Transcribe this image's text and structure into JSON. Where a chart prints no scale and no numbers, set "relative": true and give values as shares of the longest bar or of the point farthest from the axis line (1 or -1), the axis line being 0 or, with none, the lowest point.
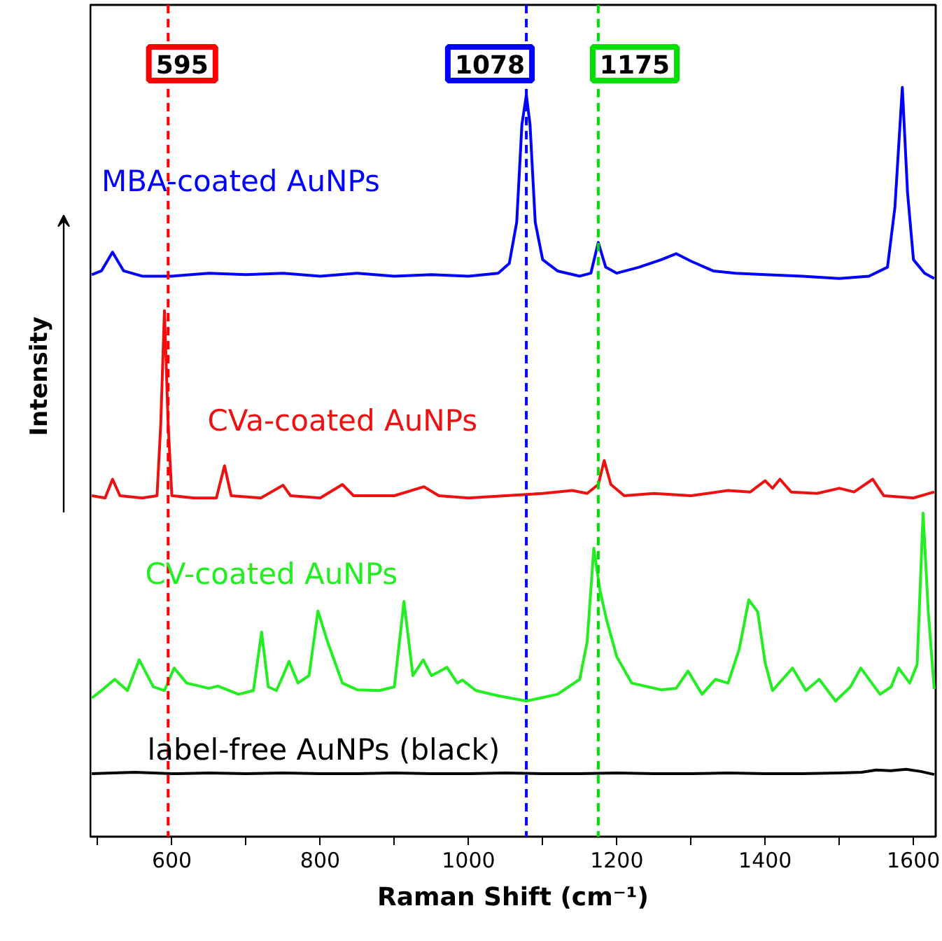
{
  "chart_data": {
    "type": "line",
    "relative": true,
    "xlabel": "Raman Shift (cm⁻¹)",
    "ylabel": "Intensity",
    "xlim": [
      490,
      1630
    ],
    "xticks": [
      {
        "value": 500,
        "label": null
      },
      600,
      {
        "value": 700,
        "label": null
      },
      800,
      {
        "value": 900,
        "label": null
      },
      1000,
      {
        "value": 1100,
        "label": null
      },
      1200,
      {
        "value": 1300,
        "label": null
      },
      1400,
      {
        "value": 1500,
        "label": null
      },
      1600
    ],
    "grid": false,
    "marker": "none",
    "line_style": "solid",
    "ref_lines": [
      {
        "axis": "x",
        "value": 595,
        "label": "595",
        "color": "#ff0000",
        "line_style": "dashed"
      },
      {
        "axis": "x",
        "value": 1078,
        "label": "1078",
        "color": "#0000ff",
        "line_style": "dashed"
      },
      {
        "axis": "x",
        "value": 1175,
        "label": "1175",
        "color": "#00e000",
        "line_style": "dashed"
      }
    ],
    "series": [
      {
        "name": "MBA-coated AuNPs",
        "color": "#0000ff",
        "x": [
          492,
          505,
          520,
          535,
          560,
          600,
          650,
          700,
          750,
          800,
          850,
          900,
          950,
          1000,
          1040,
          1055,
          1065,
          1072,
          1078,
          1083,
          1090,
          1100,
          1120,
          1150,
          1165,
          1175,
          1185,
          1200,
          1230,
          1260,
          1280,
          1300,
          1330,
          1360,
          1400,
          1450,
          1500,
          1540,
          1565,
          1575,
          1585,
          1592,
          1600,
          1615,
          1628
        ],
        "values": [
          0.75,
          0.755,
          0.78,
          0.755,
          0.748,
          0.748,
          0.752,
          0.75,
          0.752,
          0.748,
          0.752,
          0.748,
          0.75,
          0.748,
          0.752,
          0.765,
          0.82,
          0.95,
          0.99,
          0.95,
          0.82,
          0.77,
          0.755,
          0.748,
          0.752,
          0.793,
          0.76,
          0.752,
          0.76,
          0.77,
          0.778,
          0.768,
          0.755,
          0.752,
          0.75,
          0.748,
          0.745,
          0.748,
          0.76,
          0.84,
          1.0,
          0.86,
          0.77,
          0.752,
          0.745
        ]
      },
      {
        "name": "CVa-coated AuNPs",
        "color": "#ee1111",
        "x": [
          492,
          510,
          520,
          530,
          560,
          580,
          585,
          590,
          595,
          600,
          630,
          660,
          671,
          680,
          720,
          750,
          760,
          800,
          830,
          845,
          900,
          940,
          960,
          1000,
          1050,
          1100,
          1140,
          1160,
          1175,
          1183,
          1192,
          1210,
          1250,
          1300,
          1350,
          1380,
          1400,
          1410,
          1420,
          1435,
          1470,
          1500,
          1520,
          1545,
          1560,
          1600,
          1628
        ],
        "values": [
          0.455,
          0.452,
          0.477,
          0.455,
          0.452,
          0.455,
          0.55,
          0.702,
          0.55,
          0.455,
          0.452,
          0.452,
          0.495,
          0.455,
          0.452,
          0.469,
          0.455,
          0.452,
          0.47,
          0.455,
          0.455,
          0.467,
          0.455,
          0.452,
          0.455,
          0.458,
          0.462,
          0.458,
          0.47,
          0.502,
          0.47,
          0.455,
          0.458,
          0.455,
          0.462,
          0.46,
          0.475,
          0.465,
          0.477,
          0.46,
          0.458,
          0.465,
          0.46,
          0.477,
          0.455,
          0.452,
          0.46
        ]
      },
      {
        "name": "CV-coated AuNPs",
        "color": "#22ee22",
        "x": [
          492,
          505,
          523,
          540,
          556,
          575,
          590,
          603,
          620,
          650,
          662,
          690,
          710,
          721,
          730,
          741,
          750,
          758,
          770,
          785,
          797,
          810,
          830,
          850,
          880,
          900,
          913,
          925,
          939,
          950,
          960,
          971,
          985,
          992,
          1010,
          1040,
          1078,
          1120,
          1150,
          1160,
          1169,
          1177,
          1186,
          1200,
          1220,
          1260,
          1280,
          1296,
          1315,
          1333,
          1350,
          1365,
          1378,
          1390,
          1400,
          1410,
          1437,
          1455,
          1473,
          1495,
          1515,
          1529,
          1555,
          1570,
          1580,
          1595,
          1605,
          1613,
          1620,
          1628
        ],
        "values": [
          0.185,
          0.195,
          0.21,
          0.195,
          0.236,
          0.2,
          0.195,
          0.225,
          0.205,
          0.198,
          0.201,
          0.19,
          0.195,
          0.273,
          0.2,
          0.195,
          0.215,
          0.234,
          0.205,
          0.215,
          0.301,
          0.26,
          0.205,
          0.196,
          0.195,
          0.2,
          0.314,
          0.215,
          0.236,
          0.215,
          0.22,
          0.226,
          0.205,
          0.209,
          0.195,
          0.188,
          0.181,
          0.19,
          0.21,
          0.26,
          0.385,
          0.33,
          0.29,
          0.24,
          0.205,
          0.196,
          0.198,
          0.221,
          0.19,
          0.21,
          0.205,
          0.25,
          0.316,
          0.3,
          0.232,
          0.195,
          0.225,
          0.195,
          0.21,
          0.181,
          0.2,
          0.225,
          0.19,
          0.2,
          0.225,
          0.205,
          0.23,
          0.432,
          0.3,
          0.197
        ]
      },
      {
        "name": "label-free AuNPs (black)",
        "color": "#000000",
        "x": [
          492,
          550,
          600,
          650,
          700,
          750,
          800,
          850,
          900,
          950,
          1000,
          1050,
          1100,
          1150,
          1200,
          1250,
          1300,
          1350,
          1400,
          1450,
          1500,
          1530,
          1550,
          1570,
          1590,
          1610,
          1628
        ],
        "values": [
          0.084,
          0.086,
          0.084,
          0.085,
          0.084,
          0.085,
          0.084,
          0.084,
          0.085,
          0.084,
          0.084,
          0.085,
          0.084,
          0.084,
          0.085,
          0.084,
          0.084,
          0.085,
          0.084,
          0.084,
          0.085,
          0.086,
          0.089,
          0.088,
          0.09,
          0.087,
          0.083
        ]
      }
    ]
  }
}
